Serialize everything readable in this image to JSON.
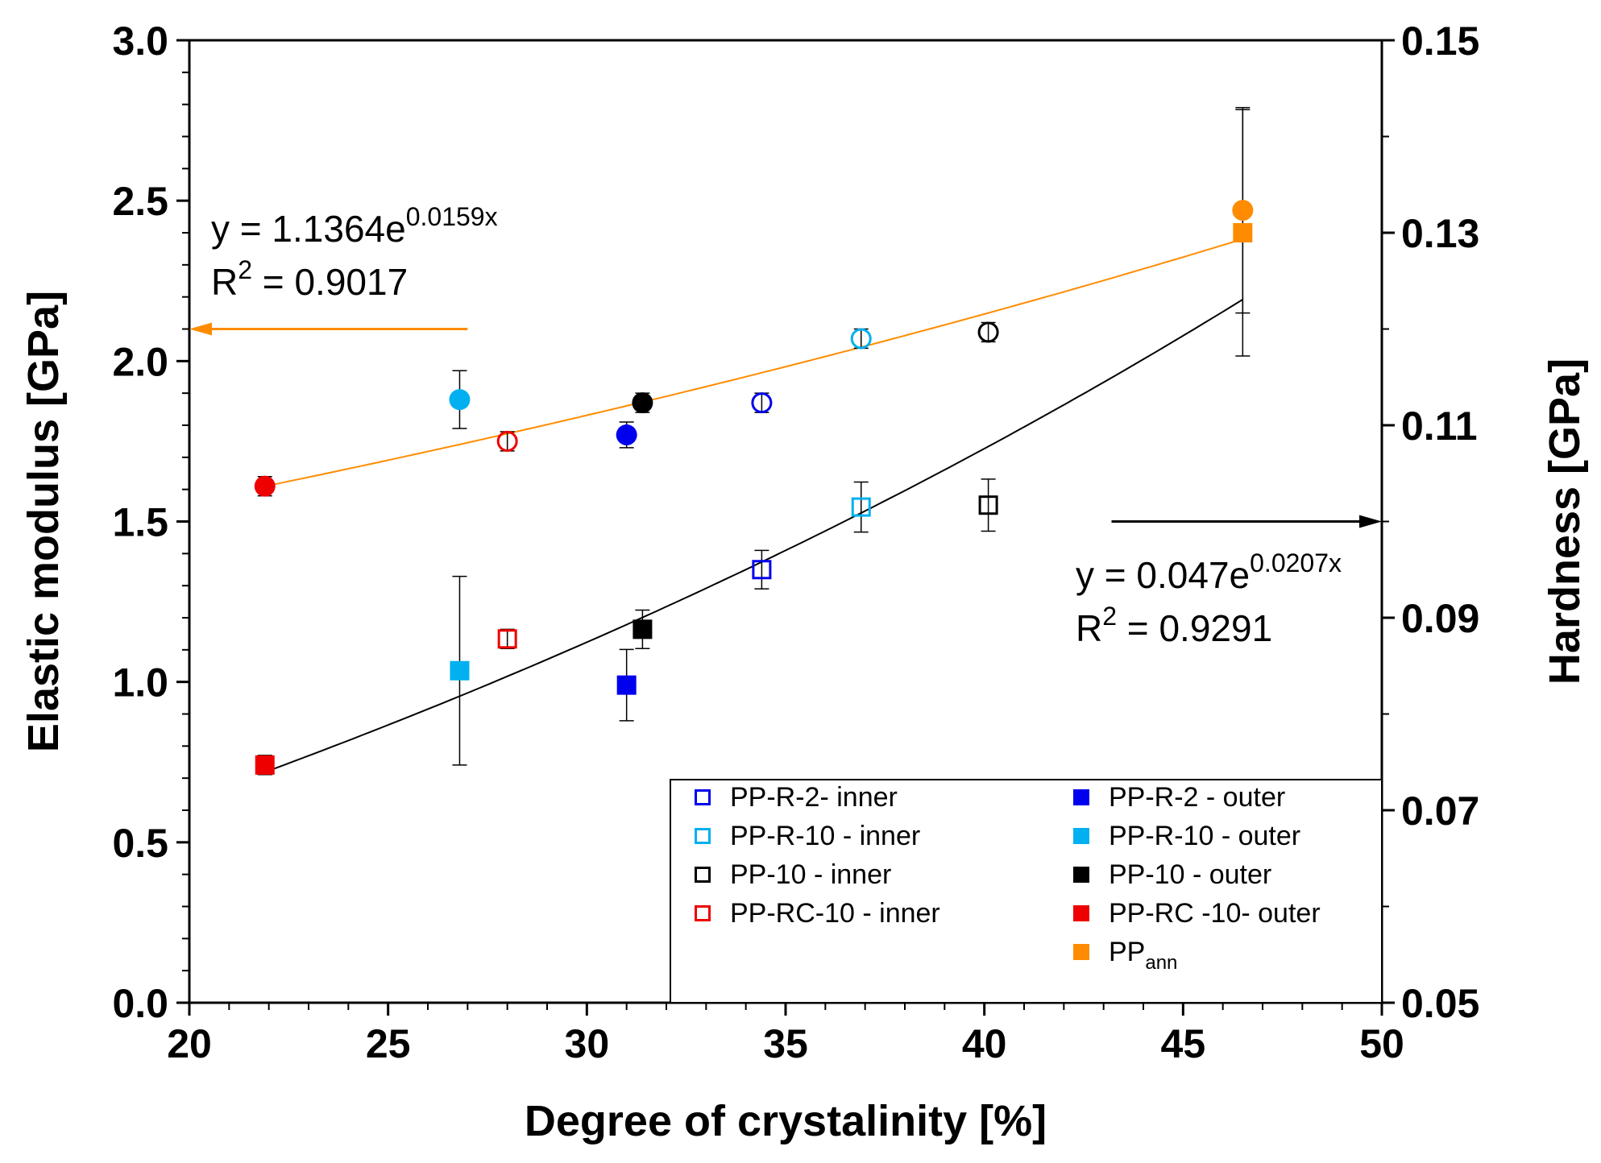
{
  "chart_data": {
    "type": "scatter",
    "xlabel": "Degree of crystalinity [%]",
    "ylabel": "Elastic modulus [GPa]",
    "y2label": "Hardness [GPa]",
    "xlim": [
      20,
      50
    ],
    "ylim": [
      0,
      3.0
    ],
    "y2lim": [
      0.05,
      0.15
    ],
    "x_ticks": [
      "20",
      "25",
      "30",
      "35",
      "40",
      "45",
      "50"
    ],
    "y_ticks": [
      "0.0",
      "0.5",
      "1.0",
      "1.5",
      "2.0",
      "2.5",
      "3.0"
    ],
    "y2_ticks": [
      "0.05",
      "0.07",
      "0.09",
      "0.11",
      "0.13",
      "0.15"
    ],
    "legend_position": "bottom-right",
    "series": [
      {
        "name": "PP-R-2- inner",
        "axis": "right",
        "marker": "square-open",
        "color": "#0000ee",
        "x": [
          34.4
        ],
        "y": [
          0.095
        ],
        "err": [
          0.002
        ]
      },
      {
        "name": "PP-R-10 - inner",
        "axis": "right",
        "marker": "square-open",
        "color": "#00b0f0",
        "x": [
          36.9
        ],
        "y": [
          0.1015
        ],
        "err": [
          0.0026
        ]
      },
      {
        "name": "PP-10 - inner",
        "axis": "right",
        "marker": "square-open",
        "color": "#000000",
        "x": [
          40.1
        ],
        "y": [
          0.1017
        ],
        "err": [
          0.0027
        ]
      },
      {
        "name": "PP-RC-10 - inner",
        "axis": "right",
        "marker": "square-open",
        "color": "#ee0000",
        "x": [
          28.0
        ],
        "y": [
          0.0878
        ],
        "err": [
          0.001
        ]
      },
      {
        "name": "PP-R-2 - outer",
        "axis": "right",
        "marker": "square",
        "color": "#0000ee",
        "x": [
          31.0
        ],
        "y": [
          0.083
        ],
        "err": [
          0.0037
        ]
      },
      {
        "name": "PP-R-10 - outer",
        "axis": "right",
        "marker": "square",
        "color": "#00b0f0",
        "x": [
          26.8
        ],
        "y": [
          0.0845
        ],
        "err": [
          0.0098
        ]
      },
      {
        "name": "PP-10 - outer",
        "axis": "right",
        "marker": "square",
        "color": "#000000",
        "x": [
          31.4
        ],
        "y": [
          0.0888
        ],
        "err": [
          0.002
        ]
      },
      {
        "name": "PP-RC -10- outer",
        "axis": "right",
        "marker": "square",
        "color": "#ee0000",
        "x": [
          21.9
        ],
        "y": [
          0.0747
        ],
        "err": [
          0.001
        ]
      },
      {
        "name_main": "PP",
        "name_sub": "ann",
        "axis": "both",
        "marker": "square+circle",
        "color": "#ff8c00",
        "x": [
          46.5
        ],
        "y_square_right": [
          0.13
        ],
        "err_square_right": [
          0.0128
        ],
        "y_circle_left": [
          2.47
        ],
        "err_circle_left": [
          0.32
        ]
      },
      {
        "name": "PP-R-2- inner (modulus)",
        "axis": "left",
        "marker": "circle-open",
        "color": "#0000ee",
        "x": [
          34.4
        ],
        "y": [
          1.87
        ],
        "err": [
          0.03
        ]
      },
      {
        "name": "PP-R-10 - inner (modulus)",
        "axis": "left",
        "marker": "circle-open",
        "color": "#00b0f0",
        "x": [
          36.9
        ],
        "y": [
          2.07
        ],
        "err": [
          0.03
        ]
      },
      {
        "name": "PP-10 - inner (modulus)",
        "axis": "left",
        "marker": "circle-open",
        "color": "#000000",
        "x": [
          40.1
        ],
        "y": [
          2.09
        ],
        "err": [
          0.03
        ]
      },
      {
        "name": "PP-RC-10 - inner (modulus)",
        "axis": "left",
        "marker": "circle-open",
        "color": "#ee0000",
        "x": [
          28.0
        ],
        "y": [
          1.75
        ],
        "err": [
          0.03
        ]
      },
      {
        "name": "PP-R-2 - outer (modulus)",
        "axis": "left",
        "marker": "circle",
        "color": "#0000ee",
        "x": [
          31.0
        ],
        "y": [
          1.77
        ],
        "err": [
          0.04
        ]
      },
      {
        "name": "PP-R-10 - outer (modulus)",
        "axis": "left",
        "marker": "circle",
        "color": "#00b0f0",
        "x": [
          26.8
        ],
        "y": [
          1.88
        ],
        "err": [
          0.09
        ]
      },
      {
        "name": "PP-10 - outer (modulus)",
        "axis": "left",
        "marker": "circle",
        "color": "#000000",
        "x": [
          31.4
        ],
        "y": [
          1.87
        ],
        "err": [
          0.03
        ]
      },
      {
        "name": "PP-RC -10- outer (modulus)",
        "axis": "left",
        "marker": "circle",
        "color": "#ee0000",
        "x": [
          21.9
        ],
        "y": [
          1.61
        ],
        "err": [
          0.03
        ]
      }
    ],
    "fits": [
      {
        "name": "modulus fit",
        "axis": "left",
        "color": "#ff8c00",
        "a": 1.1364,
        "b": 0.0159,
        "x_range": [
          21.9,
          46.5
        ],
        "eq_prefix": "y = 1.1364e",
        "eq_exp": "0.0159x",
        "r2_prefix": "R",
        "r2_sup": "2",
        "r2_value": " = 0.9017"
      },
      {
        "name": "hardness fit",
        "axis": "right",
        "color": "#000000",
        "a": 0.047,
        "b": 0.0207,
        "x_range": [
          21.9,
          46.5
        ],
        "eq_prefix": "y = 0.047e",
        "eq_exp": "0.0207x",
        "r2_prefix": "R",
        "r2_sup": "2",
        "r2_value": " = 0.9291"
      }
    ],
    "annotations": [
      {
        "name": "modulus-axis-arrow",
        "color": "#ff8c00",
        "direction": "left",
        "x_from": 27.0,
        "x_to": 20.0,
        "y_left": 2.1
      },
      {
        "name": "hardness-axis-arrow",
        "color": "#000000",
        "direction": "right",
        "x_from": 43.2,
        "x_to": 50.0,
        "y_left": 1.5
      }
    ],
    "legend": {
      "left_column": [
        {
          "label": "PP-R-2- inner",
          "marker": "square-open",
          "color": "#0000ee"
        },
        {
          "label": "PP-R-10 - inner",
          "marker": "square-open",
          "color": "#00b0f0"
        },
        {
          "label": "PP-10 - inner",
          "marker": "square-open",
          "color": "#000000"
        },
        {
          "label": "PP-RC-10 - inner",
          "marker": "square-open",
          "color": "#ee0000"
        }
      ],
      "right_column": [
        {
          "label": "PP-R-2 - outer",
          "marker": "square",
          "color": "#0000ee"
        },
        {
          "label": "PP-R-10 - outer",
          "marker": "square",
          "color": "#00b0f0"
        },
        {
          "label": "PP-10 - outer",
          "marker": "square",
          "color": "#000000"
        },
        {
          "label": "PP-RC -10- outer",
          "marker": "square",
          "color": "#ee0000"
        },
        {
          "label_main": "PP",
          "label_sub": "ann",
          "marker": "square",
          "color": "#ff8c00"
        }
      ]
    }
  }
}
